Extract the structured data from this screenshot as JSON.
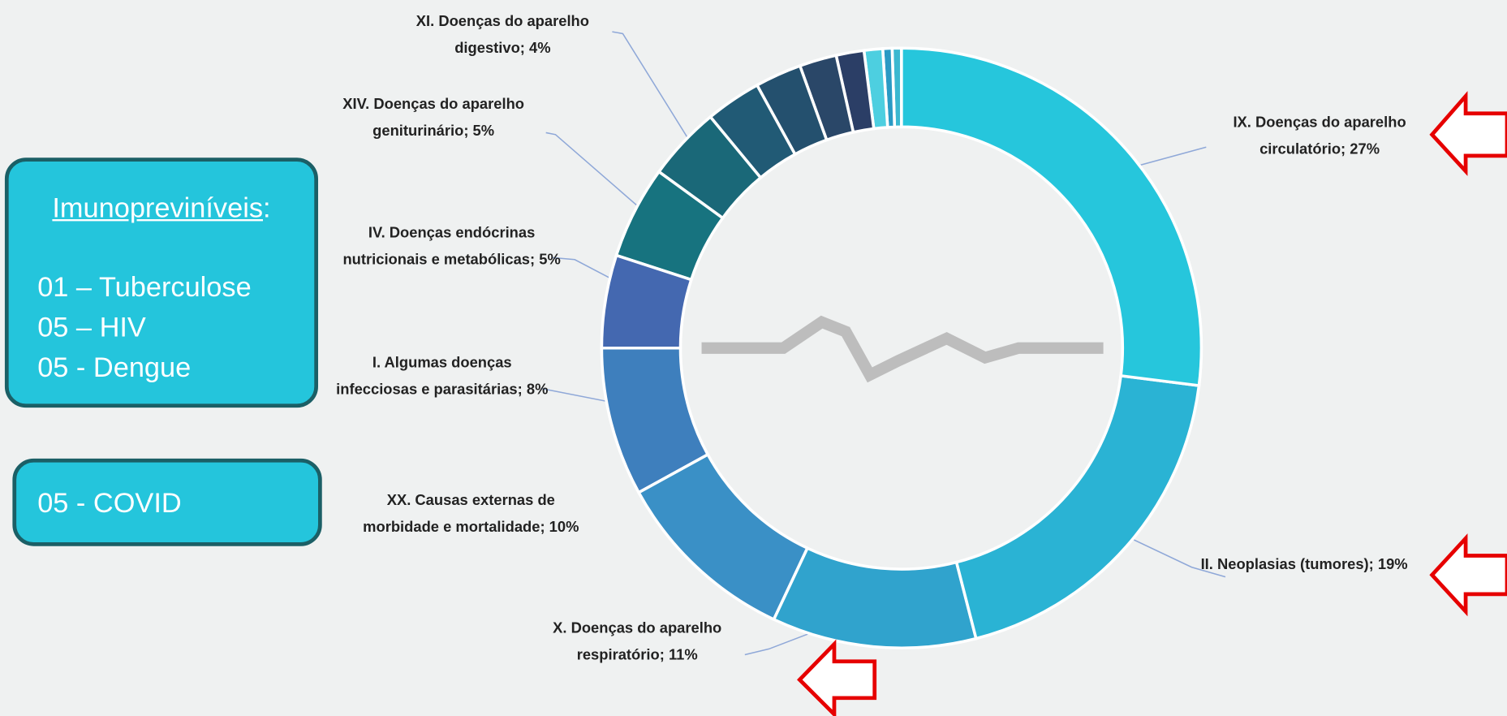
{
  "chart_data": {
    "type": "donut",
    "categories": [
      "IX.  Doenças do aparelho circulatório;",
      "II.  Neoplasias (tumores);",
      "X.   Doenças do aparelho respiratório;",
      "XX.  Causas externas de morbidade e mortalidade;",
      "I.  Algumas doenças infecciosas e parasitárias;",
      "IV.  Doenças endócrinas nutricionais e metabólicas;",
      "XIV. Doenças do aparelho geniturinário;",
      "XI.  Doenças do aparelho digestivo;",
      null,
      null,
      null,
      null,
      null,
      null,
      null
    ],
    "values": [
      27,
      19,
      11,
      10,
      8,
      5,
      5,
      4,
      3,
      2.5,
      2,
      1.5,
      1,
      0.5,
      0.5
    ],
    "value_labels": [
      "27%",
      "19%",
      "11%",
      "10%",
      "8%",
      "5%",
      "5%",
      "4%",
      null,
      null,
      null,
      null,
      null,
      null,
      null
    ],
    "colors": [
      "#26c6dc",
      "#2ab3d4",
      "#30a3cd",
      "#3a90c6",
      "#3e7fbd",
      "#4468b0",
      "#17737f",
      "#1a6878",
      "#215a75",
      "#24506e",
      "#2a4768",
      "#2b3e66",
      "#4dcfe0",
      "#2a9ac4",
      "#3bb8d0"
    ]
  },
  "sidebar": {
    "box1": {
      "heading": "Imunopreviníveis",
      "heading_suffix": ":",
      "items": [
        "01 – Tuberculose",
        "05 – HIV",
        "05 - Dengue"
      ]
    },
    "box2": {
      "items": [
        "05 - COVID"
      ]
    }
  }
}
